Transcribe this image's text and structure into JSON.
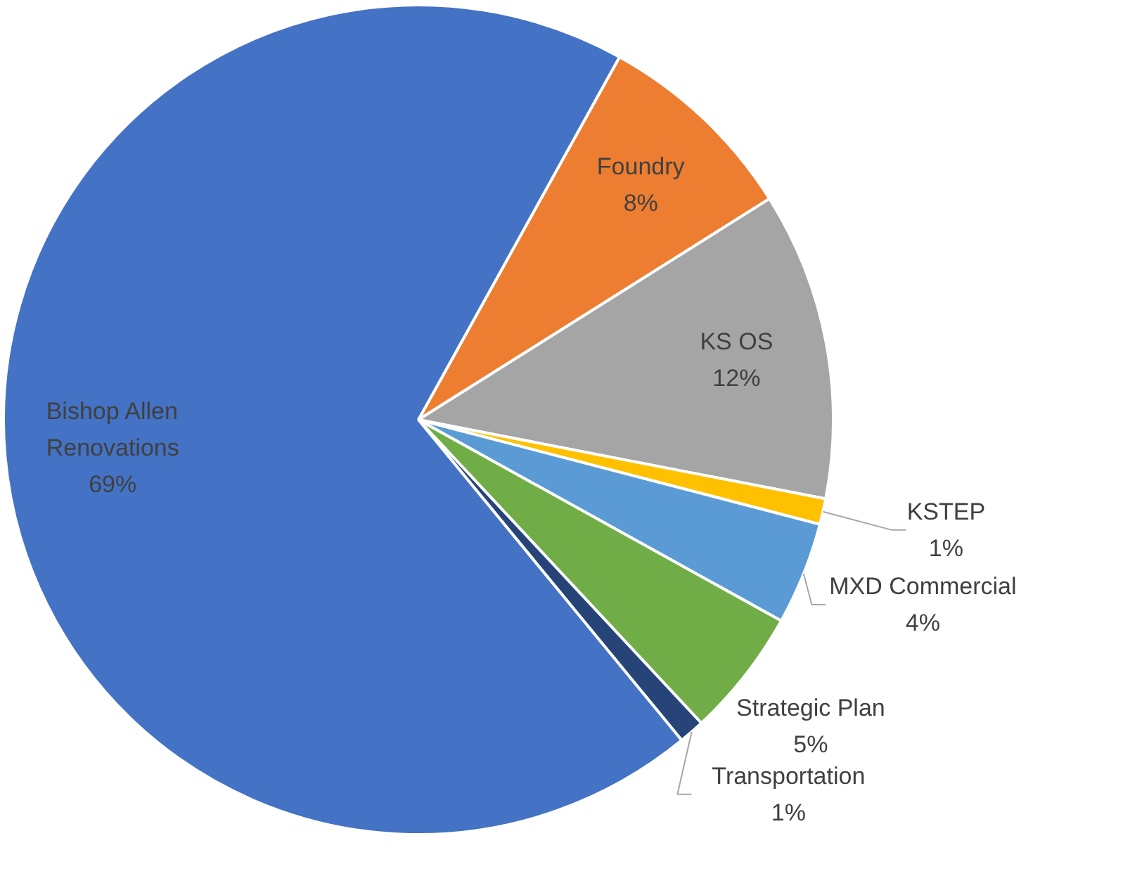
{
  "chart_data": {
    "type": "pie",
    "categories": [
      "Foundry",
      "KS OS",
      "KSTEP",
      "MXD Commercial",
      "Strategic Plan",
      "Transportation",
      "Bishop Allen Renovations"
    ],
    "values": [
      8,
      12,
      1,
      4,
      5,
      1,
      69
    ],
    "value_labels": [
      "8%",
      "12%",
      "1%",
      "4%",
      "5%",
      "1%",
      "69%"
    ],
    "colors": [
      "#ed7d31",
      "#a5a5a5",
      "#ffc000",
      "#5b9bd5",
      "#70ad47",
      "#264478",
      "#4472c4"
    ]
  }
}
